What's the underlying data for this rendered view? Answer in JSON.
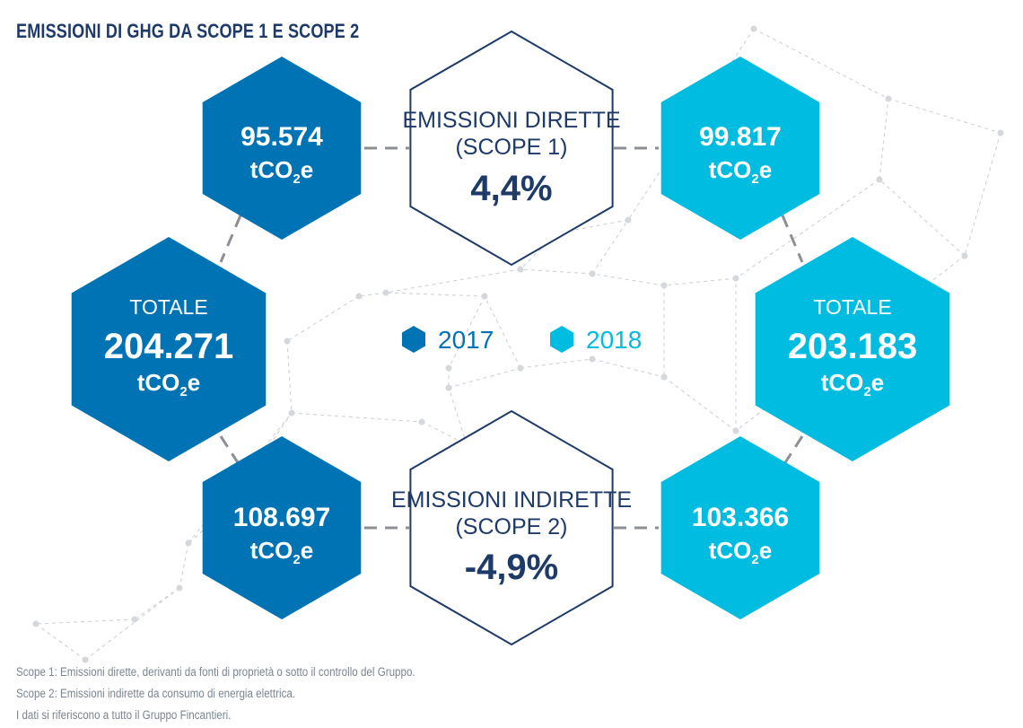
{
  "title": "EMISSIONI DI GHG DA SCOPE 1 E SCOPE  2",
  "unit": {
    "base": "tCO",
    "sub": "2",
    "suffix": "e"
  },
  "colors": {
    "year_2017": "#0073b4",
    "year_2018": "#00bce0",
    "navy": "#1e3a68",
    "network": "#c9cdd2"
  },
  "legend": [
    {
      "label": "2017",
      "color": "#0073b4"
    },
    {
      "label": "2018",
      "color": "#00bce0"
    }
  ],
  "scope1": {
    "label_line1": "EMISSIONI DIRETTE",
    "label_line2": "(SCOPE 1)",
    "change": "4,4%",
    "value_2017": "95.574",
    "value_2018": "99.817"
  },
  "scope2": {
    "label_line1": "EMISSIONI INDIRETTE",
    "label_line2": "(SCOPE 2)",
    "change": "-4,9%",
    "value_2017": "108.697",
    "value_2018": "103.366"
  },
  "totals": {
    "label": "TOTALE",
    "value_2017": "204.271",
    "value_2018": "203.183"
  },
  "notes": [
    "Scope 1: Emissioni dirette, derivanti da fonti di proprietà o sotto il controllo del Gruppo.",
    "Scope 2: Emissioni indirette da consumo di energia elettrica.",
    "I dati si riferiscono a tutto il Gruppo Fincantieri."
  ]
}
